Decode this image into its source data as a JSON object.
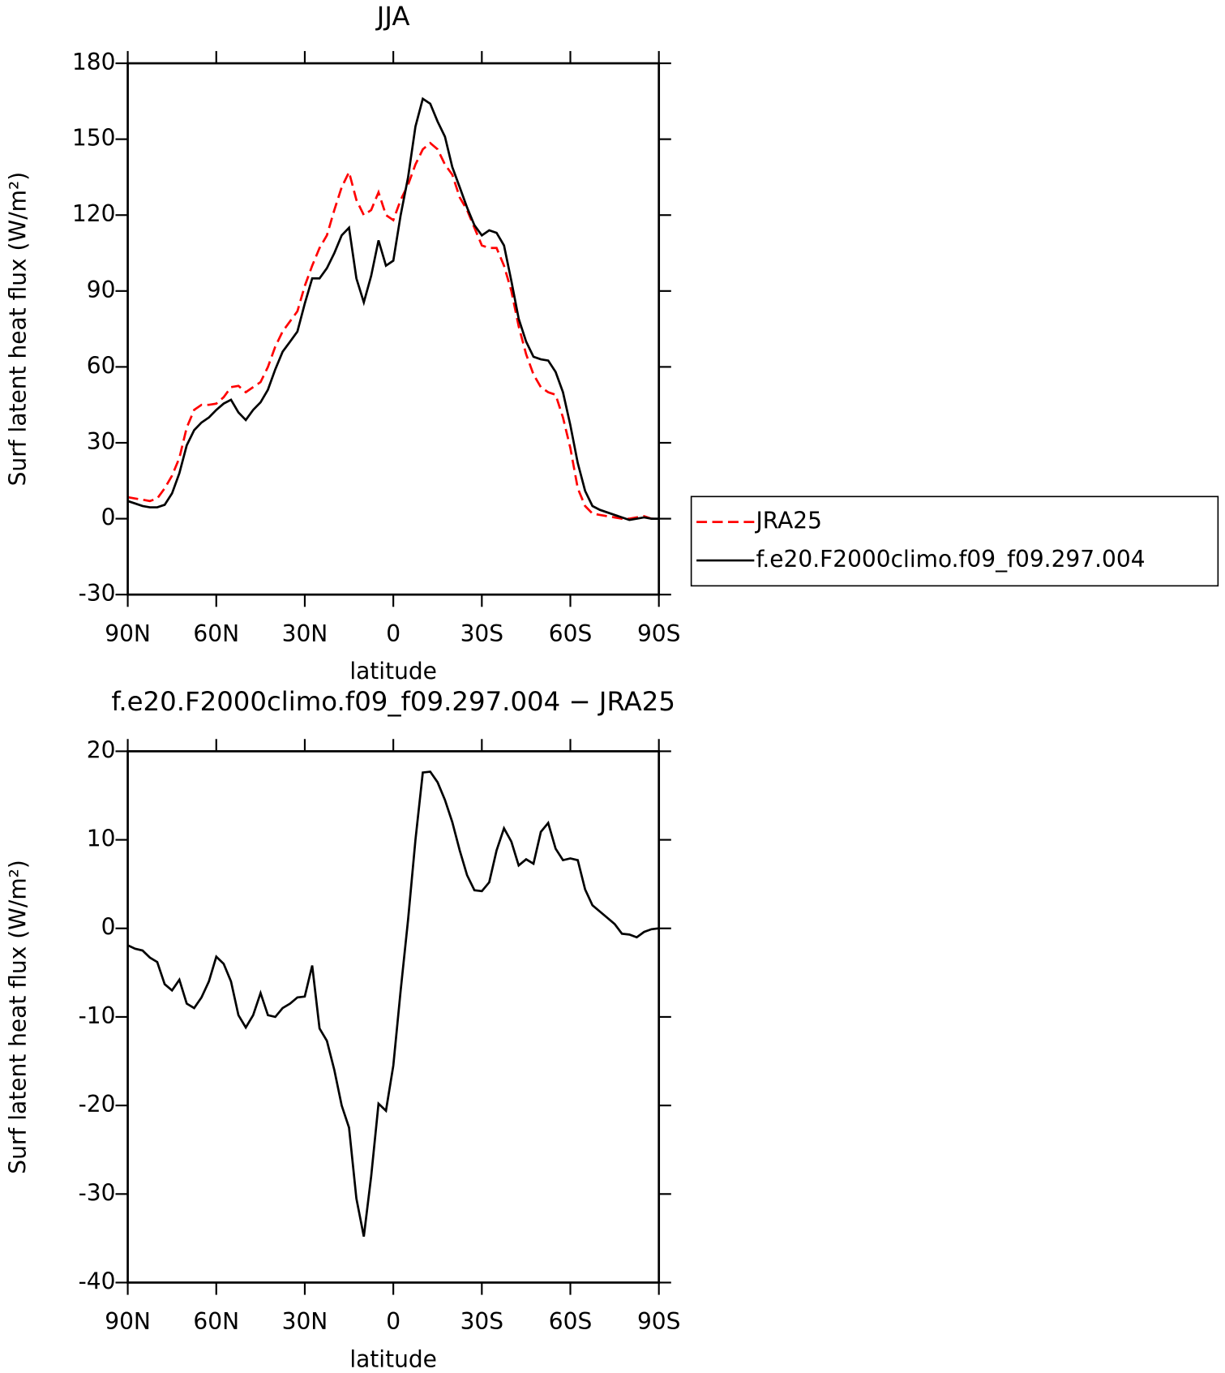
{
  "chart_data": [
    {
      "type": "line",
      "title": "JJA",
      "xlabel": "latitude",
      "ylabel": "Surf latent heat flux (W/m²)",
      "x": [
        90,
        87.5,
        85,
        82.5,
        80,
        77.5,
        75,
        72.5,
        70,
        67.5,
        65,
        62.5,
        60,
        57.5,
        55,
        52.5,
        50,
        47.5,
        45,
        42.5,
        40,
        37.5,
        35,
        32.5,
        30,
        27.5,
        25,
        22.5,
        20,
        17.5,
        15,
        12.5,
        10,
        7.5,
        5,
        2.5,
        0,
        -2.5,
        -5,
        -7.5,
        -10,
        -12.5,
        -15,
        -17.5,
        -20,
        -22.5,
        -25,
        -27.5,
        -30,
        -32.5,
        -35,
        -37.5,
        -40,
        -42.5,
        -45,
        -47.5,
        -50,
        -52.5,
        -55,
        -57.5,
        -60,
        -62.5,
        -65,
        -67.5,
        -70,
        -72.5,
        -75,
        -77.5,
        -80,
        -82.5,
        -85,
        -87.5,
        -90
      ],
      "series": [
        {
          "name": "JRA25",
          "color": "#ff0000",
          "linestyle": "dashed",
          "values": [
            8.5,
            8,
            7.5,
            7,
            8,
            12,
            17,
            24,
            36,
            43,
            45,
            45,
            45.5,
            48,
            52,
            52.5,
            50,
            52,
            54,
            60,
            68,
            74,
            78,
            82,
            92,
            100,
            107,
            112,
            122,
            131,
            137,
            126,
            120,
            122,
            129,
            120,
            118,
            126,
            132,
            140,
            146,
            148.5,
            146,
            140,
            136,
            127,
            122,
            115,
            108,
            107,
            107,
            100,
            90,
            76,
            65,
            57,
            52,
            50,
            49,
            40,
            28,
            12,
            5,
            2,
            1.5,
            1,
            0.5,
            0,
            0,
            0.5,
            1,
            0,
            0
          ]
        },
        {
          "name": "f.e20.F2000climo.f09_f09.297.004",
          "color": "#000000",
          "linestyle": "solid",
          "values": [
            7,
            6,
            5,
            4.5,
            4.5,
            5.5,
            10,
            18,
            29,
            35,
            38,
            40,
            43,
            45.5,
            47,
            42,
            39,
            43,
            46,
            51,
            59,
            66,
            70,
            74,
            85,
            95,
            95,
            99,
            105,
            112,
            115,
            95,
            85.5,
            96,
            110,
            100,
            102,
            120,
            135,
            155,
            166,
            164,
            157,
            151,
            139,
            131,
            123,
            116,
            112,
            114,
            113,
            108,
            94,
            79,
            70,
            64,
            63,
            62.5,
            58,
            50,
            37,
            22,
            11,
            5,
            3.5,
            2.5,
            1.5,
            0.5,
            -0.5,
            0,
            0.5,
            0,
            0
          ]
        }
      ],
      "xlim": [
        90,
        -90
      ],
      "xticks": [
        {
          "value": 90,
          "label": "90N"
        },
        {
          "value": 60,
          "label": "60N"
        },
        {
          "value": 30,
          "label": "30N"
        },
        0,
        {
          "value": -30,
          "label": "30S"
        },
        {
          "value": -60,
          "label": "60S"
        },
        {
          "value": -90,
          "label": "90S"
        }
      ],
      "ylim": [
        -30,
        180
      ],
      "yticks": [
        -30,
        0,
        30,
        60,
        90,
        120,
        150,
        180
      ],
      "legend": "right"
    },
    {
      "type": "line",
      "title": "f.e20.F2000climo.f09_f09.297.004 − JRA25",
      "xlabel": "latitude",
      "ylabel": "Surf latent heat flux (W/m²)",
      "x": [
        90,
        87.5,
        85,
        82.5,
        80,
        77.5,
        75,
        72.5,
        70,
        67.5,
        65,
        62.5,
        60,
        57.5,
        55,
        52.5,
        50,
        47.5,
        45,
        42.5,
        40,
        37.5,
        35,
        32.5,
        30,
        27.5,
        25,
        22.5,
        20,
        17.5,
        15,
        12.5,
        10,
        7.5,
        5,
        2.5,
        0,
        -2.5,
        -5,
        -7.5,
        -10,
        -12.5,
        -15,
        -17.5,
        -20,
        -22.5,
        -25,
        -27.5,
        -30,
        -32.5,
        -35,
        -37.5,
        -40,
        -42.5,
        -45,
        -47.5,
        -50,
        -52.5,
        -55,
        -57.5,
        -60,
        -62.5,
        -65,
        -67.5,
        -70,
        -72.5,
        -75,
        -77.5,
        -80,
        -82.5,
        -85,
        -87.5,
        -90
      ],
      "series": [
        {
          "color": "#000000",
          "linestyle": "solid",
          "values": [
            -1.9,
            -2.3,
            -2.5,
            -3.3,
            -3.8,
            -6.3,
            -7,
            -5.8,
            -8.5,
            -9,
            -7.8,
            -6,
            -3.2,
            -4,
            -6,
            -9.8,
            -11.2,
            -9.8,
            -7.3,
            -9.8,
            -10,
            -9,
            -8.5,
            -7.8,
            -7.7,
            -4.2,
            -11.3,
            -12.7,
            -16,
            -20,
            -22.5,
            -30.5,
            -34.8,
            -28,
            -19.8,
            -20.6,
            -15.5,
            -7,
            1,
            10,
            17.6,
            17.7,
            16.5,
            14.5,
            12,
            8.8,
            6,
            4.3,
            4.2,
            5.2,
            8.8,
            11.3,
            9.8,
            7.1,
            7.8,
            7.3,
            10.9,
            11.9,
            9,
            7.7,
            7.9,
            7.7,
            4.4,
            2.6,
            1.9,
            1.2,
            0.5,
            -0.6,
            -0.7,
            -1,
            -0.4,
            -0.1,
            0
          ]
        }
      ],
      "xlim": [
        90,
        -90
      ],
      "xticks": [
        {
          "value": 90,
          "label": "90N"
        },
        {
          "value": 60,
          "label": "60N"
        },
        {
          "value": 30,
          "label": "30N"
        },
        0,
        {
          "value": -30,
          "label": "30S"
        },
        {
          "value": -60,
          "label": "60S"
        },
        {
          "value": -90,
          "label": "90S"
        }
      ],
      "ylim": [
        -40,
        20
      ],
      "yticks": [
        -40,
        -30,
        -20,
        -10,
        0,
        10,
        20
      ]
    }
  ]
}
